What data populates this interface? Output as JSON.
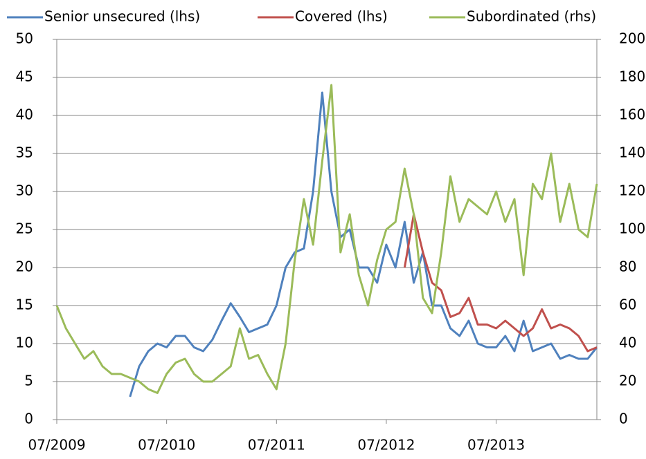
{
  "chart_data": {
    "type": "line",
    "x": [
      "07/2009",
      "08/2009",
      "09/2009",
      "10/2009",
      "11/2009",
      "12/2009",
      "01/2010",
      "02/2010",
      "03/2010",
      "04/2010",
      "05/2010",
      "06/2010",
      "07/2010",
      "08/2010",
      "09/2010",
      "10/2010",
      "11/2010",
      "12/2010",
      "01/2011",
      "02/2011",
      "03/2011",
      "04/2011",
      "05/2011",
      "06/2011",
      "07/2011",
      "08/2011",
      "09/2011",
      "10/2011",
      "11/2011",
      "12/2011",
      "01/2012",
      "02/2012",
      "03/2012",
      "04/2012",
      "05/2012",
      "06/2012",
      "07/2012",
      "08/2012",
      "09/2012",
      "10/2012",
      "11/2012",
      "12/2012",
      "01/2013",
      "02/2013",
      "03/2013",
      "04/2013",
      "05/2013",
      "06/2013",
      "07/2013",
      "08/2013",
      "09/2013",
      "10/2013",
      "11/2013",
      "12/2013",
      "01/2014",
      "02/2014",
      "03/2014",
      "04/2014",
      "05/2014",
      "06/2014"
    ],
    "xlim": [
      "07/2009",
      "06/2014"
    ],
    "xticks": [
      "07/2009",
      "07/2010",
      "07/2011",
      "07/2012",
      "07/2013"
    ],
    "ylim": [
      0,
      50
    ],
    "yticks": [
      0,
      5,
      10,
      15,
      20,
      25,
      30,
      35,
      40,
      45,
      50
    ],
    "y2lim": [
      0,
      200
    ],
    "y2ticks": [
      0,
      20,
      40,
      60,
      80,
      100,
      120,
      140,
      160,
      180,
      200
    ],
    "grid": true,
    "series": [
      {
        "name": "Senior unsecured (lhs)",
        "color": "#4f81bd",
        "values": [
          null,
          null,
          null,
          null,
          null,
          null,
          null,
          null,
          3,
          7,
          9,
          10,
          9.5,
          11,
          11,
          9.5,
          9,
          10.5,
          13,
          15.3,
          13.5,
          11.5,
          12,
          12.5,
          15,
          20,
          22,
          22.5,
          30,
          43,
          30,
          24,
          25,
          20,
          20,
          18,
          23,
          20,
          26,
          18,
          22,
          15,
          15,
          12,
          11,
          13,
          10,
          9.5,
          9.5,
          11,
          9,
          13,
          9,
          9.5,
          10,
          8,
          8.5,
          8,
          8,
          9.5
        ]
      },
      {
        "name": "Covered (lhs)",
        "color": "#c0504d",
        "values": [
          null,
          null,
          null,
          null,
          null,
          null,
          null,
          null,
          null,
          null,
          null,
          null,
          null,
          null,
          null,
          null,
          null,
          null,
          null,
          null,
          null,
          null,
          null,
          null,
          null,
          null,
          null,
          null,
          null,
          null,
          null,
          null,
          null,
          null,
          null,
          null,
          null,
          null,
          20,
          27,
          22,
          18,
          17,
          13.5,
          14,
          16,
          12.5,
          12.5,
          12,
          13,
          12,
          11,
          12,
          14.5,
          12,
          12.5,
          12,
          11,
          9,
          9.5
        ]
      },
      {
        "name": "Subordinated (rhs)",
        "color": "#9bbb59",
        "axis": "y2",
        "values": [
          60,
          48,
          40,
          32,
          36,
          28,
          24,
          24,
          22,
          20,
          16,
          14,
          24,
          30,
          32,
          24,
          20,
          20,
          24,
          28,
          48,
          32,
          34,
          24,
          16,
          40,
          84,
          116,
          92,
          136,
          176,
          88,
          108,
          76,
          60,
          84,
          100,
          104,
          132,
          108,
          64,
          56,
          88,
          128,
          104,
          116,
          112,
          108,
          120,
          104,
          116,
          76,
          124,
          116,
          140,
          104,
          124,
          100,
          96,
          124
        ]
      }
    ]
  }
}
